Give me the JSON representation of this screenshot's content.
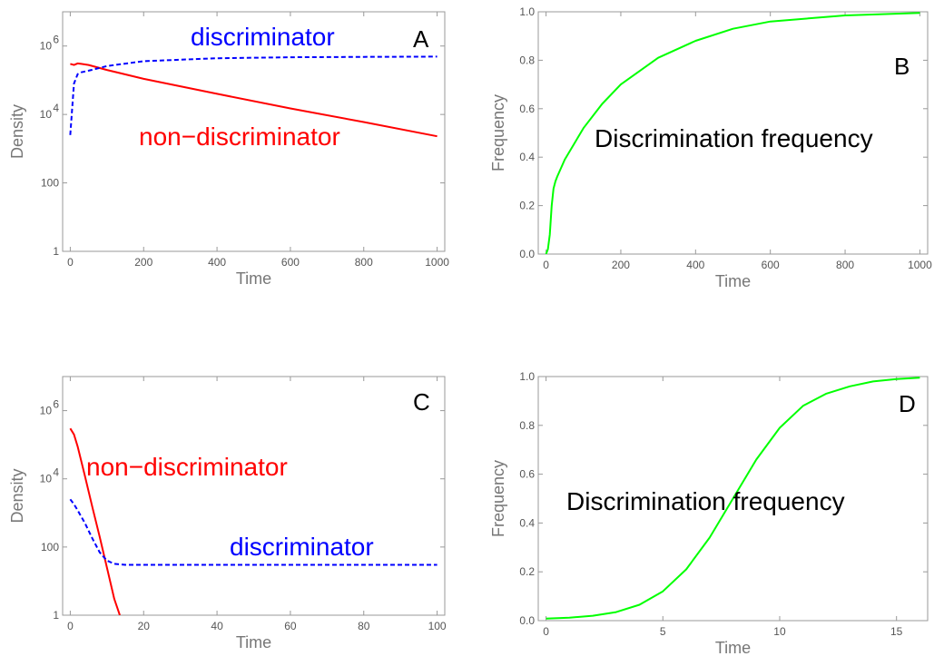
{
  "chart_data": [
    {
      "panel": "A",
      "type": "line",
      "xlabel": "Time",
      "ylabel": "Density",
      "xlim": [
        0,
        1000
      ],
      "ylim": [
        1,
        10000000
      ],
      "yscale": "log",
      "xticks": [
        "0",
        "200",
        "400",
        "600",
        "800",
        "1000"
      ],
      "yticks": [
        {
          "value": 1,
          "label": "1"
        },
        {
          "value": 100,
          "label": "100"
        },
        {
          "value": 10000,
          "label": "10",
          "exp": "4"
        },
        {
          "value": 1000000,
          "label": "10",
          "exp": "6"
        }
      ],
      "annotations": [
        {
          "text": "discriminator",
          "color": "#0000ff"
        },
        {
          "text": "non−discriminator",
          "color": "#ff0000"
        }
      ],
      "series": [
        {
          "color": "#ff0000",
          "dash": "solid",
          "x": [
            0,
            10,
            20,
            30,
            50,
            100,
            200,
            400,
            600,
            800,
            1000
          ],
          "y": [
            300000,
            280000,
            310000,
            300000,
            280000,
            200000,
            110000,
            40000,
            15000,
            6000,
            2300
          ]
        },
        {
          "color": "#0000ff",
          "dash": "dashed",
          "x": [
            0,
            10,
            20,
            30,
            50,
            100,
            200,
            400,
            600,
            800,
            1000
          ],
          "y": [
            2500,
            80000,
            150000,
            170000,
            190000,
            260000,
            360000,
            440000,
            470000,
            480000,
            490000
          ]
        }
      ]
    },
    {
      "panel": "B",
      "type": "line",
      "xlabel": "Time",
      "ylabel": "Frequency",
      "xlim": [
        0,
        1000
      ],
      "ylim": [
        0,
        1
      ],
      "xticks": [
        "0",
        "200",
        "400",
        "600",
        "800",
        "1000"
      ],
      "yticks": [
        "0.0",
        "0.2",
        "0.4",
        "0.6",
        "0.8",
        "1.0"
      ],
      "annotations": [
        {
          "text": "Discrimination frequency",
          "color": "#000000"
        }
      ],
      "series": [
        {
          "color": "#00ff00",
          "dash": "solid",
          "x": [
            0,
            5,
            10,
            15,
            20,
            25,
            30,
            50,
            100,
            150,
            200,
            300,
            400,
            500,
            600,
            800,
            1000
          ],
          "y": [
            0.0,
            0.02,
            0.08,
            0.2,
            0.27,
            0.3,
            0.32,
            0.39,
            0.52,
            0.62,
            0.7,
            0.81,
            0.88,
            0.93,
            0.96,
            0.985,
            0.995
          ]
        }
      ]
    },
    {
      "panel": "C",
      "type": "line",
      "xlabel": "Time",
      "ylabel": "Density",
      "xlim": [
        0,
        100
      ],
      "ylim": [
        1,
        10000000
      ],
      "yscale": "log",
      "xticks": [
        "0",
        "20",
        "40",
        "60",
        "80",
        "100"
      ],
      "yticks": [
        {
          "value": 1,
          "label": "1"
        },
        {
          "value": 100,
          "label": "100"
        },
        {
          "value": 10000,
          "label": "10",
          "exp": "4"
        },
        {
          "value": 1000000,
          "label": "10",
          "exp": "6"
        }
      ],
      "annotations": [
        {
          "text": "non−discriminator",
          "color": "#ff0000"
        },
        {
          "text": "discriminator",
          "color": "#0000ff"
        }
      ],
      "series": [
        {
          "color": "#ff0000",
          "dash": "solid",
          "x": [
            0,
            1,
            2,
            4,
            6,
            8,
            10,
            12,
            13.5
          ],
          "y": [
            300000,
            200000,
            90000,
            12000,
            1500,
            200,
            25,
            3,
            1
          ]
        },
        {
          "color": "#0000ff",
          "dash": "dashed",
          "x": [
            0,
            1,
            2,
            4,
            6,
            8,
            10,
            12,
            15,
            20,
            40,
            60,
            80,
            100
          ],
          "y": [
            2500,
            1800,
            1200,
            500,
            180,
            70,
            40,
            32,
            30,
            30,
            30,
            30,
            30,
            30
          ]
        }
      ]
    },
    {
      "panel": "D",
      "type": "line",
      "xlabel": "Time",
      "ylabel": "Frequency",
      "xlim": [
        0,
        16
      ],
      "ylim": [
        0,
        1
      ],
      "xticks": [
        "0",
        "5",
        "10",
        "15"
      ],
      "yticks": [
        "0.0",
        "0.2",
        "0.4",
        "0.6",
        "0.8",
        "1.0"
      ],
      "annotations": [
        {
          "text": "Discrimination frequency",
          "color": "#000000"
        }
      ],
      "series": [
        {
          "color": "#00ff00",
          "dash": "solid",
          "x": [
            0,
            1,
            2,
            3,
            4,
            5,
            6,
            7,
            8,
            9,
            10,
            11,
            12,
            13,
            14,
            15,
            16
          ],
          "y": [
            0.008,
            0.012,
            0.02,
            0.035,
            0.065,
            0.12,
            0.21,
            0.34,
            0.5,
            0.66,
            0.79,
            0.88,
            0.93,
            0.96,
            0.98,
            0.99,
            0.995
          ]
        }
      ]
    }
  ]
}
